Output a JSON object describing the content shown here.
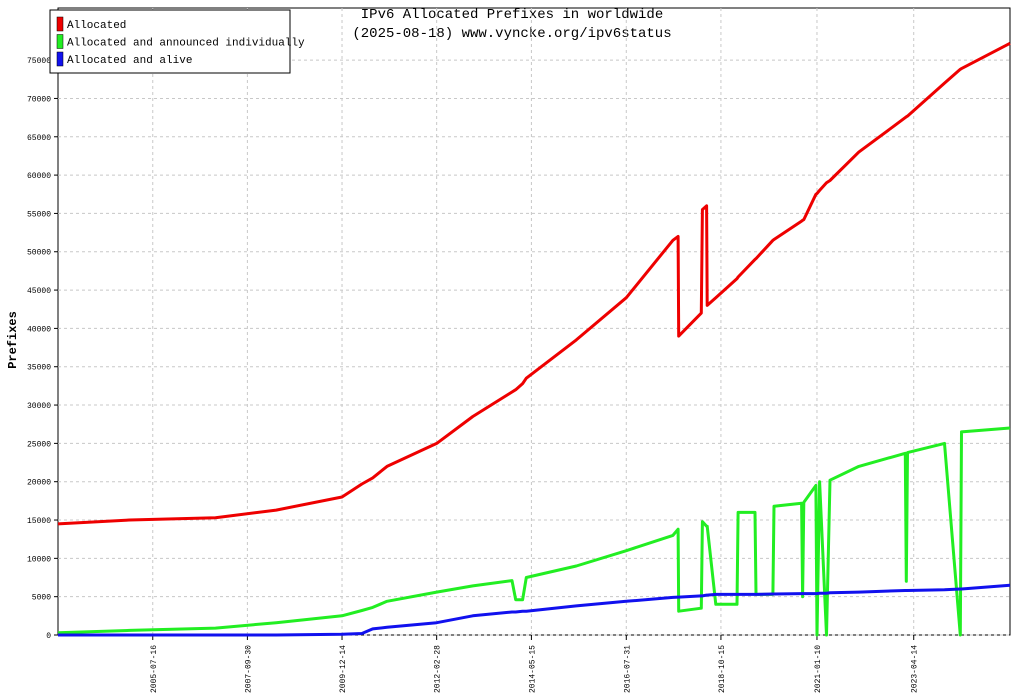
{
  "chart_data": {
    "type": "line",
    "title": "IPv6 Allocated Prefixes in worldwide",
    "subtitle": "(2025-08-18) www.vyncke.org/ipv6status",
    "y_label": "Prefixes",
    "legend": "top-left",
    "grid": true,
    "ylim": [
      0,
      81800
    ],
    "yticks": [
      0,
      5000,
      10000,
      15000,
      20000,
      25000,
      30000,
      35000,
      40000,
      45000,
      50000,
      55000,
      60000,
      65000,
      70000,
      75000
    ],
    "xlim": [
      "2003-05-01",
      "2025-07-12"
    ],
    "xticks": [
      "2005-07-16",
      "2007-09-30",
      "2009-12-14",
      "2012-02-28",
      "2014-05-15",
      "2016-07-31",
      "2018-10-15",
      "2021-01-10",
      "2023-04-14"
    ],
    "x": [
      "2003-05-01",
      "2005-01-01",
      "2007-01-01",
      "2008-06-01",
      "2009-12-14",
      "2010-06-01",
      "2010-09-01",
      "2011-01-01",
      "2012-02-28",
      "2013-01-01",
      "2013-12-01",
      "2014-01-01",
      "2014-03-01",
      "2014-04-01",
      "2015-06-01",
      "2016-07-31",
      "2017-09-01",
      "2017-10-15",
      "2017-10-20",
      "2018-05-01",
      "2018-05-10",
      "2018-06-15",
      "2018-06-20",
      "2018-09-01",
      "2019-03-01",
      "2019-03-10",
      "2019-08-01",
      "2019-08-10",
      "2020-01-01",
      "2020-01-10",
      "2020-09-01",
      "2020-09-10",
      "2020-09-20",
      "2021-01-01",
      "2021-01-10",
      "2021-02-01",
      "2021-04-01",
      "2021-05-01",
      "2022-01-01",
      "2023-02-01",
      "2023-02-10",
      "2023-02-20",
      "2024-01-01",
      "2024-05-15",
      "2024-05-25",
      "2025-07-12"
    ],
    "series": [
      {
        "name": "Allocated",
        "color": "#ee0000",
        "values": [
          14500,
          15000,
          15300,
          16300,
          18000,
          19700,
          20500,
          22000,
          25000,
          28500,
          31700,
          32000,
          32800,
          33500,
          38500,
          44000,
          51500,
          52000,
          39000,
          42000,
          55500,
          56000,
          43000,
          44000,
          46500,
          46700,
          49000,
          49100,
          51500,
          51600,
          54000,
          54100,
          54200,
          57500,
          57600,
          58000,
          59000,
          59300,
          63000,
          67500,
          67600,
          67700,
          72000,
          73800,
          73900,
          77200
        ]
      },
      {
        "name": "Allocated and announced individually",
        "color": "#22ee22",
        "values": [
          300,
          600,
          900,
          1600,
          2500,
          3200,
          3600,
          4400,
          5600,
          6400,
          7100,
          4600,
          4600,
          7500,
          9000,
          11000,
          13000,
          13800,
          3100,
          3500,
          14800,
          14200,
          14200,
          4000,
          4000,
          16000,
          16000,
          5300,
          5300,
          16800,
          17200,
          5000,
          17300,
          19500,
          0,
          20000,
          0,
          20200,
          22000,
          23700,
          7000,
          23800,
          25000,
          0,
          26500,
          27000
        ]
      },
      {
        "name": "Allocated and alive",
        "color": "#1111ee",
        "values": [
          0,
          0,
          0,
          0,
          100,
          200,
          800,
          1000,
          1600,
          2500,
          3000,
          3000,
          3100,
          3100,
          3800,
          4400,
          4900,
          4950,
          4950,
          5100,
          5100,
          5200,
          5200,
          5300,
          5300,
          5300,
          5300,
          5300,
          5350,
          5350,
          5400,
          5400,
          5400,
          5400,
          5400,
          5450,
          5450,
          5500,
          5600,
          5800,
          5800,
          5800,
          5900,
          6000,
          6000,
          6500
        ]
      }
    ]
  }
}
